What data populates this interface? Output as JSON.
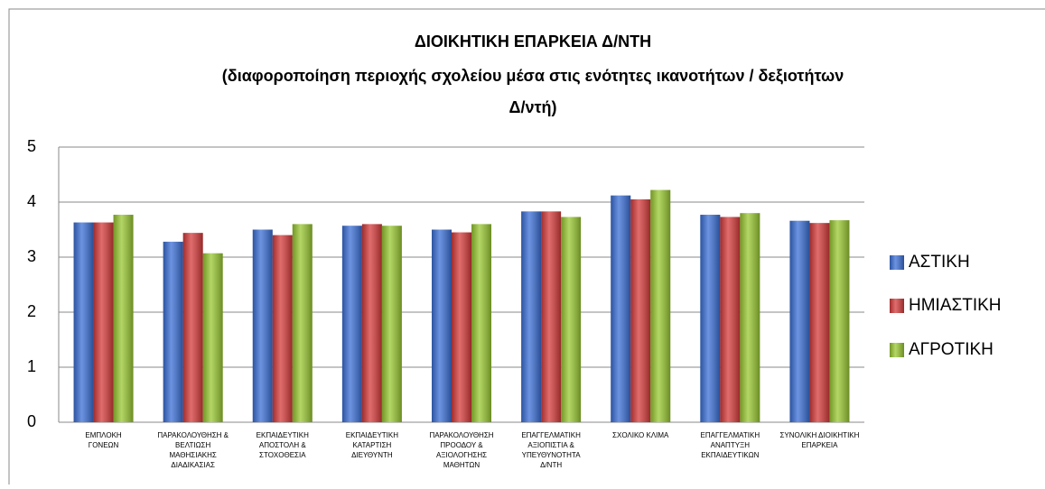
{
  "chart_data": {
    "type": "bar",
    "title": [
      "ΔΙΟΙΚΗΤΙΚΗ ΕΠΑΡΚΕΙΑ Δ/ΝΤΗ",
      "(διαφοροποίηση περιοχής σχολείου μέσα στις ενότητες ικανοτήτων / δεξιοτήτων",
      "Δ/ντή)"
    ],
    "categories": [
      "ΕΜΠΛΟΚΗ\nΓΟΝΕΩΝ",
      "ΠΑΡΑΚΟΛΟΥΘΗΣΗ &\nΒΕΛΤΙΩΣΗ\nΜΑΘΗΣΙΑΚΗΣ\nΔΙΑΔΙΚΑΣΙΑΣ",
      "ΕΚΠΑΙΔΕΥΤΙΚΗ\nΑΠΟΣΤΟΛΗ &\nΣΤΟΧΟΘΕΣΙΑ",
      "ΕΚΠΑΙΔΕΥΤΙΚΗ\nΚΑΤΑΡΤΙΣΗ\nΔΙΕΥΘΥΝΤΗ",
      "ΠΑΡΑΚΟΛΟΥΘΗΣΗ\nΠΡΟΟΔΟΥ &\nΑΞΙΟΛΟΓΗΣΗΣ\nΜΑΘΗΤΩΝ",
      "ΕΠΑΓΓΕΛΜΑΤΙΚΗ\nΑΞΙΟΠΙΣΤΙΑ &\nΥΠΕΥΘΥΝΟΤΗΤΑ\nΔ/ΝΤΗ",
      "ΣΧΟΛΙΚΟ ΚΛΙΜΑ",
      "ΕΠΑΓΓΕΛΜΑΤΙΚΗ\nΑΝΑΠΤΥΞΗ\nΕΚΠΑΙΔΕΥΤΙΚΩΝ",
      "ΣΥΝΟΛΙΚΗ ΔΙΟΙΚΗΤΙΚΗ\nΕΠΑΡΚΕΙΑ"
    ],
    "series": [
      {
        "name": "ΑΣΤΙΚΗ",
        "color": "#3b6fd6",
        "values": [
          3.63,
          3.28,
          3.5,
          3.57,
          3.5,
          3.83,
          4.12,
          3.77,
          3.66
        ]
      },
      {
        "name": "ΗΜΙΑΣΤΙΚΗ",
        "color": "#d63b3b",
        "values": [
          3.63,
          3.44,
          3.4,
          3.6,
          3.45,
          3.83,
          4.05,
          3.73,
          3.62
        ]
      },
      {
        "name": "ΑΓΡΟΤΙΚΗ",
        "color": "#99c832",
        "values": [
          3.77,
          3.07,
          3.6,
          3.57,
          3.6,
          3.73,
          4.22,
          3.8,
          3.67
        ]
      }
    ],
    "ylim": [
      0,
      5
    ],
    "yticks": [
      0,
      1,
      2,
      3,
      4,
      5
    ],
    "grid": true,
    "legend": "right"
  }
}
